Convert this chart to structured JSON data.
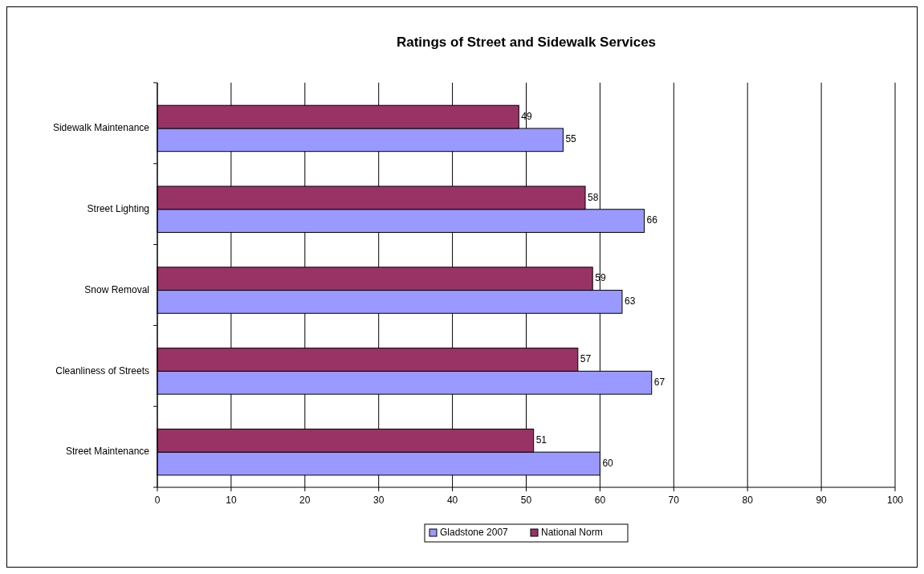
{
  "chart_data": {
    "type": "bar",
    "orientation": "horizontal",
    "title": "Ratings of Street and Sidewalk Services",
    "categories": [
      "Sidewalk Maintenance",
      "Street Lighting",
      "Snow Removal",
      "Cleanliness of Streets",
      "Street Maintenance"
    ],
    "series": [
      {
        "name": "Gladstone 2007",
        "color": "#9999ff",
        "values": [
          55,
          66,
          63,
          67,
          60
        ]
      },
      {
        "name": "National Norm",
        "color": "#993366",
        "values": [
          49,
          58,
          59,
          57,
          51
        ]
      }
    ],
    "xlim": [
      0,
      100
    ],
    "xticks": [
      0,
      10,
      20,
      30,
      40,
      50,
      60,
      70,
      80,
      90,
      100
    ],
    "grid": "x",
    "legend": "bottom",
    "data_labels": true
  }
}
